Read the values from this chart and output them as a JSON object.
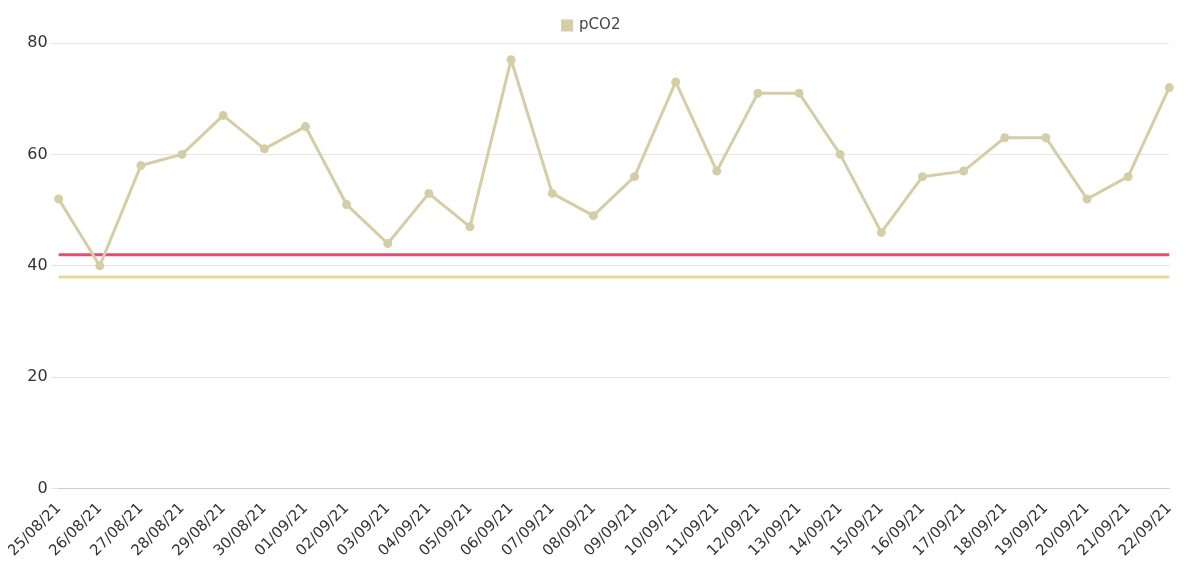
{
  "chart_data": {
    "type": "line",
    "categories": [
      "25/08/21",
      "26/08/21",
      "27/08/21",
      "28/08/21",
      "29/08/21",
      "30/08/21",
      "01/09/21",
      "02/09/21",
      "03/09/21",
      "04/09/21",
      "05/09/21",
      "06/09/21",
      "07/09/21",
      "08/09/21",
      "09/09/21",
      "10/09/21",
      "11/09/21",
      "12/09/21",
      "13/09/21",
      "14/09/21",
      "15/09/21",
      "16/09/21",
      "17/09/21",
      "18/09/21",
      "19/09/21",
      "20/09/21",
      "21/09/21",
      "22/09/21"
    ],
    "series": [
      {
        "name": "pCO2",
        "color": "#d4cda6",
        "values": [
          52,
          40,
          58,
          60,
          67,
          61,
          65,
          51,
          44,
          53,
          47,
          77,
          53,
          49,
          56,
          73,
          57,
          71,
          71,
          60,
          46,
          56,
          57,
          63,
          63,
          52,
          56,
          72
        ]
      }
    ],
    "ref_lines": [
      {
        "axis": "y",
        "value": 42,
        "color": "#e0506e"
      },
      {
        "axis": "y",
        "value": 38,
        "color": "#e8d896"
      }
    ],
    "ylim": [
      0,
      80
    ],
    "yticks": [
      0,
      20,
      40,
      60,
      80
    ],
    "grid": "y",
    "legend": "top",
    "marker": "circle",
    "line_style": "solid"
  }
}
